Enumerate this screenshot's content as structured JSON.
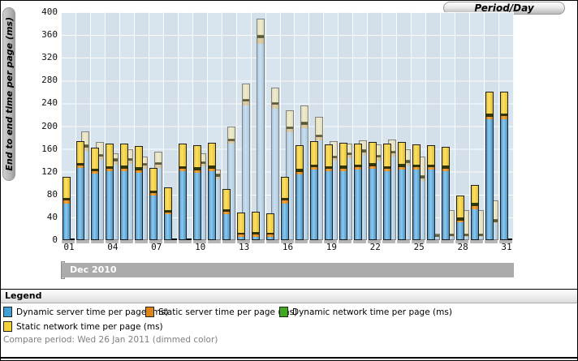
{
  "tab": {
    "label": "Period/Day"
  },
  "y_axis": {
    "title": "End to end time per page (ms)",
    "ticks": [
      400,
      360,
      320,
      280,
      240,
      200,
      160,
      120,
      80,
      40,
      0
    ]
  },
  "x_axis": {
    "labels": [
      "01",
      "04",
      "07",
      "10",
      "13",
      "16",
      "19",
      "22",
      "25",
      "28",
      "31"
    ],
    "label_day_indices": [
      0,
      3,
      6,
      9,
      12,
      15,
      18,
      21,
      24,
      27,
      30
    ]
  },
  "period_bar": {
    "label": "Dec 2010"
  },
  "legend": {
    "header": "Legend",
    "items": [
      {
        "label": "Dynamic server time per page (ms)",
        "color": "#42a0d8"
      },
      {
        "label": "Static server time per page (ms)",
        "color": "#de8614"
      },
      {
        "label": "Dynamic network time per page (ms)",
        "color": "#3faa1e"
      },
      {
        "label": "Static network time per page (ms)",
        "color": "#f6d239"
      }
    ],
    "compare_note": "Compare period: Wed 26 Jan 2011 (dimmed color)"
  },
  "chart_data": {
    "type": "bar",
    "stacked": true,
    "unit": "ms",
    "ylim": [
      0,
      400
    ],
    "grid": true,
    "title": "Period/Day",
    "ylabel": "End to end time per page (ms)",
    "period_label": "Dec 2010",
    "compare_period": "Wed 26 Jan 2011",
    "series_order": [
      "dynamic_server",
      "static_server",
      "dynamic_network",
      "static_network"
    ],
    "series_labels": [
      "Dynamic server time per page (ms)",
      "Static server time per page (ms)",
      "Dynamic network time per page (ms)",
      "Static network time per page (ms)"
    ],
    "days": [
      {
        "day": "01",
        "current": [
          65,
          6,
          2,
          38
        ],
        "compare": null
      },
      {
        "day": "02",
        "current": [
          127,
          6,
          2,
          39
        ],
        "compare": [
          158,
          7,
          2,
          24
        ]
      },
      {
        "day": "03",
        "current": [
          117,
          6,
          2,
          38
        ],
        "compare": [
          142,
          7,
          2,
          21
        ]
      },
      {
        "day": "04",
        "current": [
          121,
          6,
          2,
          41
        ],
        "compare": [
          134,
          7,
          2,
          9
        ]
      },
      {
        "day": "05",
        "current": [
          121,
          7,
          2,
          39
        ],
        "compare": [
          135,
          7,
          2,
          16
        ]
      },
      {
        "day": "06",
        "current": [
          119,
          6,
          2,
          38
        ],
        "compare": [
          127,
          6,
          2,
          12
        ]
      },
      {
        "day": "07",
        "current": [
          78,
          6,
          2,
          40
        ],
        "compare": [
          128,
          7,
          2,
          18
        ]
      },
      {
        "day": "08",
        "current": [
          45,
          5,
          2,
          41
        ],
        "compare": null
      },
      {
        "day": "09",
        "current": [
          121,
          6,
          2,
          41
        ],
        "compare": null
      },
      {
        "day": "10",
        "current": [
          119,
          6,
          2,
          39
        ],
        "compare": [
          130,
          6,
          2,
          14
        ]
      },
      {
        "day": "11",
        "current": [
          121,
          7,
          2,
          41
        ],
        "compare": [
          108,
          6,
          2,
          8
        ]
      },
      {
        "day": "12",
        "current": [
          45,
          6,
          2,
          37
        ],
        "compare": [
          170,
          6,
          2,
          21
        ]
      },
      {
        "day": "13",
        "current": [
          4,
          6,
          1,
          37
        ],
        "compare": [
          238,
          8,
          2,
          27
        ]
      },
      {
        "day": "14",
        "current": [
          5,
          6,
          1,
          38
        ],
        "compare": [
          345,
          12,
          3,
          28
        ]
      },
      {
        "day": "15",
        "current": [
          4,
          6,
          1,
          36
        ],
        "compare": [
          232,
          8,
          2,
          26
        ]
      },
      {
        "day": "16",
        "current": [
          65,
          6,
          2,
          38
        ],
        "compare": [
          190,
          7,
          2,
          29
        ]
      },
      {
        "day": "17",
        "current": [
          116,
          6,
          2,
          42
        ],
        "compare": [
          197,
          8,
          2,
          29
        ]
      },
      {
        "day": "18",
        "current": [
          124,
          6,
          2,
          41
        ],
        "compare": [
          176,
          7,
          2,
          31
        ]
      },
      {
        "day": "19",
        "current": [
          121,
          6,
          2,
          39
        ],
        "compare": [
          140,
          6,
          2,
          26
        ]
      },
      {
        "day": "20",
        "current": [
          121,
          7,
          2,
          41
        ],
        "compare": [
          145,
          7,
          2,
          16
        ]
      },
      {
        "day": "21",
        "current": [
          124,
          6,
          2,
          38
        ],
        "compare": [
          150,
          7,
          2,
          16
        ]
      },
      {
        "day": "22",
        "current": [
          126,
          6,
          2,
          38
        ],
        "compare": [
          140,
          7,
          2,
          19
        ]
      },
      {
        "day": "23",
        "current": [
          121,
          6,
          2,
          41
        ],
        "compare": [
          148,
          7,
          2,
          20
        ]
      },
      {
        "day": "24",
        "current": [
          124,
          7,
          2,
          39
        ],
        "compare": [
          132,
          6,
          2,
          20
        ]
      },
      {
        "day": "25",
        "current": [
          124,
          6,
          2,
          36
        ],
        "compare": [
          105,
          6,
          2,
          34
        ]
      },
      {
        "day": "26",
        "current": [
          124,
          6,
          2,
          34
        ],
        "compare": [
          6,
          2,
          1,
          3
        ]
      },
      {
        "day": "27",
        "current": [
          122,
          6,
          2,
          34
        ],
        "compare": [
          5,
          3,
          1,
          43
        ]
      },
      {
        "day": "28",
        "current": [
          31,
          5,
          2,
          40
        ],
        "compare": [
          5,
          3,
          1,
          43
        ]
      },
      {
        "day": "29",
        "current": [
          55,
          7,
          2,
          33
        ],
        "compare": [
          5,
          3,
          1,
          43
        ]
      },
      {
        "day": "30",
        "current": [
          213,
          6,
          2,
          40
        ],
        "compare": [
          30,
          3,
          2,
          35
        ]
      },
      {
        "day": "31",
        "current": [
          213,
          7,
          2,
          39
        ],
        "compare": null
      }
    ]
  }
}
